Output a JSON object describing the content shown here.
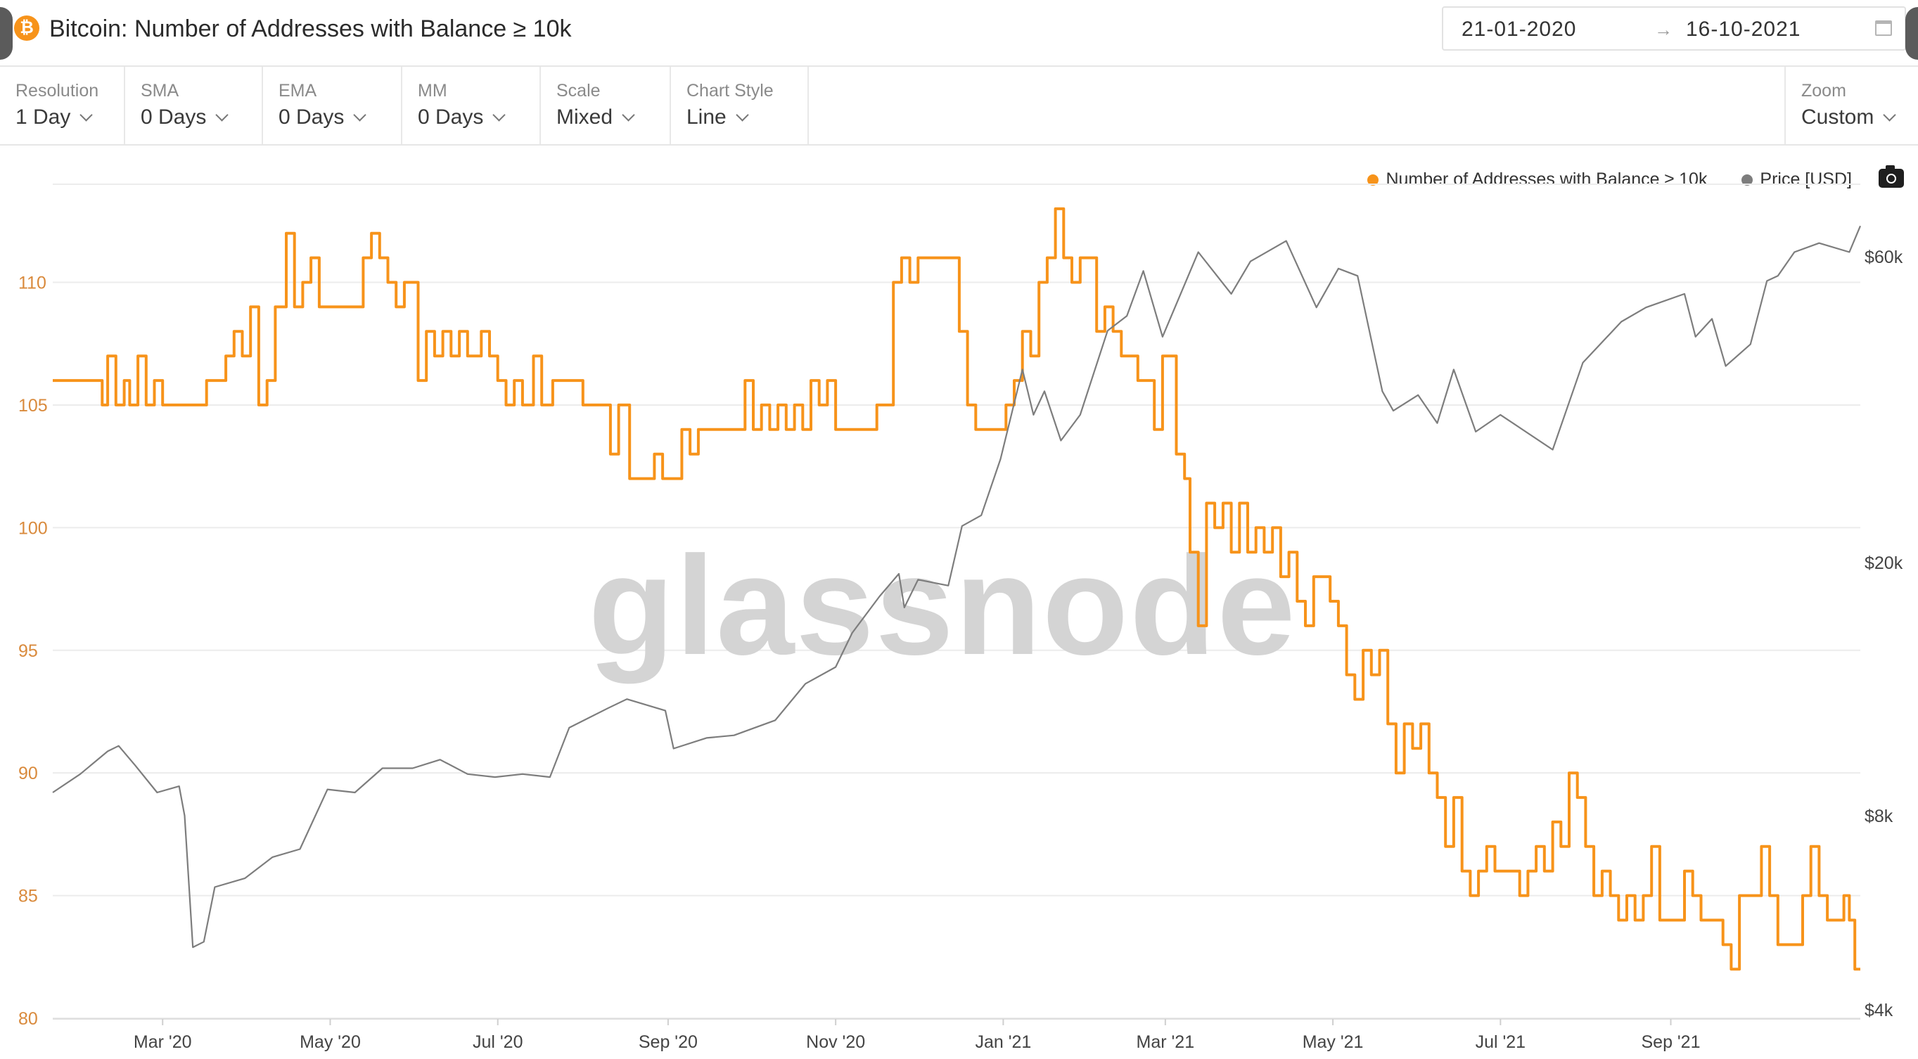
{
  "header": {
    "coin_icon_glyph": "₿",
    "title": "Bitcoin: Number of Addresses with Balance ≥ 10k",
    "date_from": "21-01-2020",
    "date_arrow": "→",
    "date_to": "16-10-2021"
  },
  "controls": [
    {
      "label": "Resolution",
      "value": "1 Day"
    },
    {
      "label": "SMA",
      "value": "0 Days"
    },
    {
      "label": "EMA",
      "value": "0 Days"
    },
    {
      "label": "MM",
      "value": "0 Days"
    },
    {
      "label": "Scale",
      "value": "Mixed"
    },
    {
      "label": "Chart Style",
      "value": "Line"
    }
  ],
  "zoom": {
    "label": "Zoom",
    "value": "Custom"
  },
  "legend": [
    {
      "label": "Number of Addresses with Balance ≥ 10k",
      "color": "#f7931a"
    },
    {
      "label": "Price [USD]",
      "color": "#7d7d7d"
    }
  ],
  "watermark": "glassnode",
  "chart_data": {
    "type": "line",
    "x_ticks": [
      "Mar '20",
      "May '20",
      "Jul '20",
      "Sep '20",
      "Nov '20",
      "Jan '21",
      "Mar '21",
      "May '21",
      "Jul '21",
      "Sep '21"
    ],
    "y_left_ticks": [
      "110",
      "105",
      "100",
      "95",
      "90",
      "85",
      "80"
    ],
    "y_right_ticks": [
      "$60k",
      "$20k",
      "$8k",
      "$4k"
    ],
    "y_left_range": [
      80,
      114
    ],
    "y_right_scale": "log",
    "grid": true,
    "legend_position": "top-right",
    "series": [
      {
        "name": "Number of Addresses with Balance ≥ 10k",
        "axis": "left",
        "color": "#f7931a",
        "points": [
          [
            "2020-01-21",
            106
          ],
          [
            "2020-02-05",
            106
          ],
          [
            "2020-02-08",
            105
          ],
          [
            "2020-02-10",
            107
          ],
          [
            "2020-02-13",
            105
          ],
          [
            "2020-02-16",
            106
          ],
          [
            "2020-02-18",
            105
          ],
          [
            "2020-02-21",
            107
          ],
          [
            "2020-02-24",
            105
          ],
          [
            "2020-02-27",
            106
          ],
          [
            "2020-03-01",
            105
          ],
          [
            "2020-03-14",
            105
          ],
          [
            "2020-03-17",
            106
          ],
          [
            "2020-03-21",
            106
          ],
          [
            "2020-03-24",
            107
          ],
          [
            "2020-03-27",
            108
          ],
          [
            "2020-03-30",
            107
          ],
          [
            "2020-04-02",
            109
          ],
          [
            "2020-04-05",
            105
          ],
          [
            "2020-04-08",
            106
          ],
          [
            "2020-04-11",
            109
          ],
          [
            "2020-04-15",
            112
          ],
          [
            "2020-04-18",
            109
          ],
          [
            "2020-04-21",
            110
          ],
          [
            "2020-04-24",
            111
          ],
          [
            "2020-04-27",
            109
          ],
          [
            "2020-05-10",
            109
          ],
          [
            "2020-05-13",
            111
          ],
          [
            "2020-05-16",
            112
          ],
          [
            "2020-05-19",
            111
          ],
          [
            "2020-05-22",
            110
          ],
          [
            "2020-05-25",
            109
          ],
          [
            "2020-05-28",
            110
          ],
          [
            "2020-06-02",
            106
          ],
          [
            "2020-06-05",
            108
          ],
          [
            "2020-06-08",
            107
          ],
          [
            "2020-06-11",
            108
          ],
          [
            "2020-06-14",
            107
          ],
          [
            "2020-06-17",
            108
          ],
          [
            "2020-06-20",
            107
          ],
          [
            "2020-06-25",
            108
          ],
          [
            "2020-06-28",
            107
          ],
          [
            "2020-07-01",
            106
          ],
          [
            "2020-07-04",
            105
          ],
          [
            "2020-07-07",
            106
          ],
          [
            "2020-07-10",
            105
          ],
          [
            "2020-07-14",
            107
          ],
          [
            "2020-07-17",
            105
          ],
          [
            "2020-07-21",
            106
          ],
          [
            "2020-07-29",
            106
          ],
          [
            "2020-08-01",
            105
          ],
          [
            "2020-08-08",
            105
          ],
          [
            "2020-08-11",
            103
          ],
          [
            "2020-08-14",
            105
          ],
          [
            "2020-08-18",
            102
          ],
          [
            "2020-08-24",
            102
          ],
          [
            "2020-08-27",
            103
          ],
          [
            "2020-08-30",
            102
          ],
          [
            "2020-09-04",
            102
          ],
          [
            "2020-09-06",
            104
          ],
          [
            "2020-09-09",
            103
          ],
          [
            "2020-09-12",
            104
          ],
          [
            "2020-09-26",
            104
          ],
          [
            "2020-09-29",
            106
          ],
          [
            "2020-10-02",
            104
          ],
          [
            "2020-10-05",
            105
          ],
          [
            "2020-10-08",
            104
          ],
          [
            "2020-10-11",
            105
          ],
          [
            "2020-10-14",
            104
          ],
          [
            "2020-10-17",
            105
          ],
          [
            "2020-10-20",
            104
          ],
          [
            "2020-10-23",
            106
          ],
          [
            "2020-10-26",
            105
          ],
          [
            "2020-10-29",
            106
          ],
          [
            "2020-11-01",
            104
          ],
          [
            "2020-11-13",
            104
          ],
          [
            "2020-11-16",
            105
          ],
          [
            "2020-11-22",
            110
          ],
          [
            "2020-11-25",
            111
          ],
          [
            "2020-11-28",
            110
          ],
          [
            "2020-12-01",
            111
          ],
          [
            "2020-12-14",
            111
          ],
          [
            "2020-12-16",
            108
          ],
          [
            "2020-12-19",
            105
          ],
          [
            "2020-12-22",
            104
          ],
          [
            "2020-12-31",
            104
          ],
          [
            "2021-01-02",
            105
          ],
          [
            "2021-01-05",
            106
          ],
          [
            "2021-01-08",
            108
          ],
          [
            "2021-01-11",
            107
          ],
          [
            "2021-01-14",
            110
          ],
          [
            "2021-01-17",
            111
          ],
          [
            "2021-01-20",
            113
          ],
          [
            "2021-01-23",
            111
          ],
          [
            "2021-01-26",
            110
          ],
          [
            "2021-01-29",
            111
          ],
          [
            "2021-02-01",
            111
          ],
          [
            "2021-02-04",
            108
          ],
          [
            "2021-02-07",
            109
          ],
          [
            "2021-02-10",
            108
          ],
          [
            "2021-02-13",
            107
          ],
          [
            "2021-02-16",
            107
          ],
          [
            "2021-02-19",
            106
          ],
          [
            "2021-02-22",
            106
          ],
          [
            "2021-02-25",
            104
          ],
          [
            "2021-02-28",
            107
          ],
          [
            "2021-03-02",
            107
          ],
          [
            "2021-03-05",
            103
          ],
          [
            "2021-03-08",
            102
          ],
          [
            "2021-03-10",
            99
          ],
          [
            "2021-03-13",
            96
          ],
          [
            "2021-03-16",
            101
          ],
          [
            "2021-03-19",
            100
          ],
          [
            "2021-03-22",
            101
          ],
          [
            "2021-03-25",
            99
          ],
          [
            "2021-03-28",
            101
          ],
          [
            "2021-03-31",
            99
          ],
          [
            "2021-04-03",
            100
          ],
          [
            "2021-04-06",
            99
          ],
          [
            "2021-04-09",
            100
          ],
          [
            "2021-04-12",
            98
          ],
          [
            "2021-04-15",
            99
          ],
          [
            "2021-04-18",
            97
          ],
          [
            "2021-04-21",
            96
          ],
          [
            "2021-04-24",
            98
          ],
          [
            "2021-04-27",
            98
          ],
          [
            "2021-04-30",
            97
          ],
          [
            "2021-05-03",
            96
          ],
          [
            "2021-05-06",
            94
          ],
          [
            "2021-05-09",
            93
          ],
          [
            "2021-05-12",
            95
          ],
          [
            "2021-05-15",
            94
          ],
          [
            "2021-05-18",
            95
          ],
          [
            "2021-05-21",
            92
          ],
          [
            "2021-05-24",
            90
          ],
          [
            "2021-05-27",
            92
          ],
          [
            "2021-05-30",
            91
          ],
          [
            "2021-06-02",
            92
          ],
          [
            "2021-06-05",
            90
          ],
          [
            "2021-06-08",
            89
          ],
          [
            "2021-06-11",
            87
          ],
          [
            "2021-06-14",
            89
          ],
          [
            "2021-06-17",
            86
          ],
          [
            "2021-06-20",
            85
          ],
          [
            "2021-06-23",
            86
          ],
          [
            "2021-06-26",
            87
          ],
          [
            "2021-06-29",
            86
          ],
          [
            "2021-07-05",
            86
          ],
          [
            "2021-07-08",
            85
          ],
          [
            "2021-07-11",
            86
          ],
          [
            "2021-07-14",
            87
          ],
          [
            "2021-07-17",
            86
          ],
          [
            "2021-07-20",
            88
          ],
          [
            "2021-07-23",
            87
          ],
          [
            "2021-07-26",
            90
          ],
          [
            "2021-07-29",
            89
          ],
          [
            "2021-08-01",
            87
          ],
          [
            "2021-08-04",
            85
          ],
          [
            "2021-08-07",
            86
          ],
          [
            "2021-08-10",
            85
          ],
          [
            "2021-08-13",
            84
          ],
          [
            "2021-08-16",
            85
          ],
          [
            "2021-08-19",
            84
          ],
          [
            "2021-08-22",
            85
          ],
          [
            "2021-08-25",
            87
          ],
          [
            "2021-08-28",
            84
          ],
          [
            "2021-09-03",
            84
          ],
          [
            "2021-09-06",
            86
          ],
          [
            "2021-09-09",
            85
          ],
          [
            "2021-09-12",
            84
          ],
          [
            "2021-09-17",
            84
          ],
          [
            "2021-09-20",
            83
          ],
          [
            "2021-09-23",
            82
          ],
          [
            "2021-09-26",
            85
          ],
          [
            "2021-10-01",
            85
          ],
          [
            "2021-10-04",
            87
          ],
          [
            "2021-10-07",
            85
          ],
          [
            "2021-10-10",
            83
          ],
          [
            "2021-10-13",
            83
          ],
          [
            "2021-10-16",
            83
          ],
          [
            "2021-10-19",
            85
          ],
          [
            "2021-10-22",
            87
          ],
          [
            "2021-10-25",
            85
          ],
          [
            "2021-10-28",
            84
          ],
          [
            "2021-11-01",
            84
          ],
          [
            "2021-11-03",
            85
          ],
          [
            "2021-11-05",
            84
          ],
          [
            "2021-11-07",
            82
          ],
          [
            "2021-11-09",
            82
          ]
        ]
      },
      {
        "name": "Price [USD]",
        "axis": "right",
        "color": "#7d7d7d",
        "points": [
          [
            "2020-01-21",
            8700
          ],
          [
            "2020-01-31",
            9300
          ],
          [
            "2020-02-10",
            10100
          ],
          [
            "2020-02-14",
            10300
          ],
          [
            "2020-02-20",
            9600
          ],
          [
            "2020-02-28",
            8700
          ],
          [
            "2020-03-07",
            8900
          ],
          [
            "2020-03-09",
            8000
          ],
          [
            "2020-03-12",
            5000
          ],
          [
            "2020-03-16",
            5100
          ],
          [
            "2020-03-20",
            6200
          ],
          [
            "2020-03-31",
            6400
          ],
          [
            "2020-04-10",
            6900
          ],
          [
            "2020-04-20",
            7100
          ],
          [
            "2020-04-30",
            8800
          ],
          [
            "2020-05-10",
            8700
          ],
          [
            "2020-05-20",
            9500
          ],
          [
            "2020-05-31",
            9500
          ],
          [
            "2020-06-10",
            9800
          ],
          [
            "2020-06-20",
            9300
          ],
          [
            "2020-06-30",
            9200
          ],
          [
            "2020-07-10",
            9300
          ],
          [
            "2020-07-20",
            9200
          ],
          [
            "2020-07-27",
            11000
          ],
          [
            "2020-08-10",
            11800
          ],
          [
            "2020-08-17",
            12200
          ],
          [
            "2020-08-31",
            11700
          ],
          [
            "2020-09-03",
            10200
          ],
          [
            "2020-09-15",
            10600
          ],
          [
            "2020-09-25",
            10700
          ],
          [
            "2020-10-10",
            11300
          ],
          [
            "2020-10-21",
            12900
          ],
          [
            "2020-11-01",
            13700
          ],
          [
            "2020-11-07",
            15500
          ],
          [
            "2020-11-17",
            17700
          ],
          [
            "2020-11-24",
            19200
          ],
          [
            "2020-11-26",
            17000
          ],
          [
            "2020-12-01",
            18800
          ],
          [
            "2020-12-12",
            18400
          ],
          [
            "2020-12-17",
            22800
          ],
          [
            "2020-12-24",
            23700
          ],
          [
            "2020-12-31",
            29000
          ],
          [
            "2021-01-08",
            40000
          ],
          [
            "2021-01-12",
            34000
          ],
          [
            "2021-01-16",
            37000
          ],
          [
            "2021-01-22",
            31000
          ],
          [
            "2021-01-29",
            34000
          ],
          [
            "2021-02-08",
            46000
          ],
          [
            "2021-02-15",
            48500
          ],
          [
            "2021-02-21",
            57000
          ],
          [
            "2021-02-28",
            45000
          ],
          [
            "2021-03-13",
            61000
          ],
          [
            "2021-03-25",
            52500
          ],
          [
            "2021-04-01",
            59000
          ],
          [
            "2021-04-14",
            63500
          ],
          [
            "2021-04-25",
            50000
          ],
          [
            "2021-05-03",
            57500
          ],
          [
            "2021-05-10",
            56000
          ],
          [
            "2021-05-19",
            37000
          ],
          [
            "2021-05-23",
            34500
          ],
          [
            "2021-06-01",
            36500
          ],
          [
            "2021-06-08",
            33000
          ],
          [
            "2021-06-14",
            40000
          ],
          [
            "2021-06-22",
            32000
          ],
          [
            "2021-07-01",
            34000
          ],
          [
            "2021-07-20",
            30000
          ],
          [
            "2021-07-31",
            41000
          ],
          [
            "2021-08-14",
            47500
          ],
          [
            "2021-08-23",
            50000
          ],
          [
            "2021-09-06",
            52500
          ],
          [
            "2021-09-10",
            45000
          ],
          [
            "2021-09-16",
            48000
          ],
          [
            "2021-09-21",
            40500
          ],
          [
            "2021-09-30",
            43800
          ],
          [
            "2021-10-06",
            55000
          ],
          [
            "2021-10-10",
            56000
          ],
          [
            "2021-10-16",
            61000
          ],
          [
            "2021-10-25",
            63000
          ],
          [
            "2021-11-05",
            61000
          ],
          [
            "2021-11-09",
            67000
          ]
        ]
      }
    ]
  }
}
